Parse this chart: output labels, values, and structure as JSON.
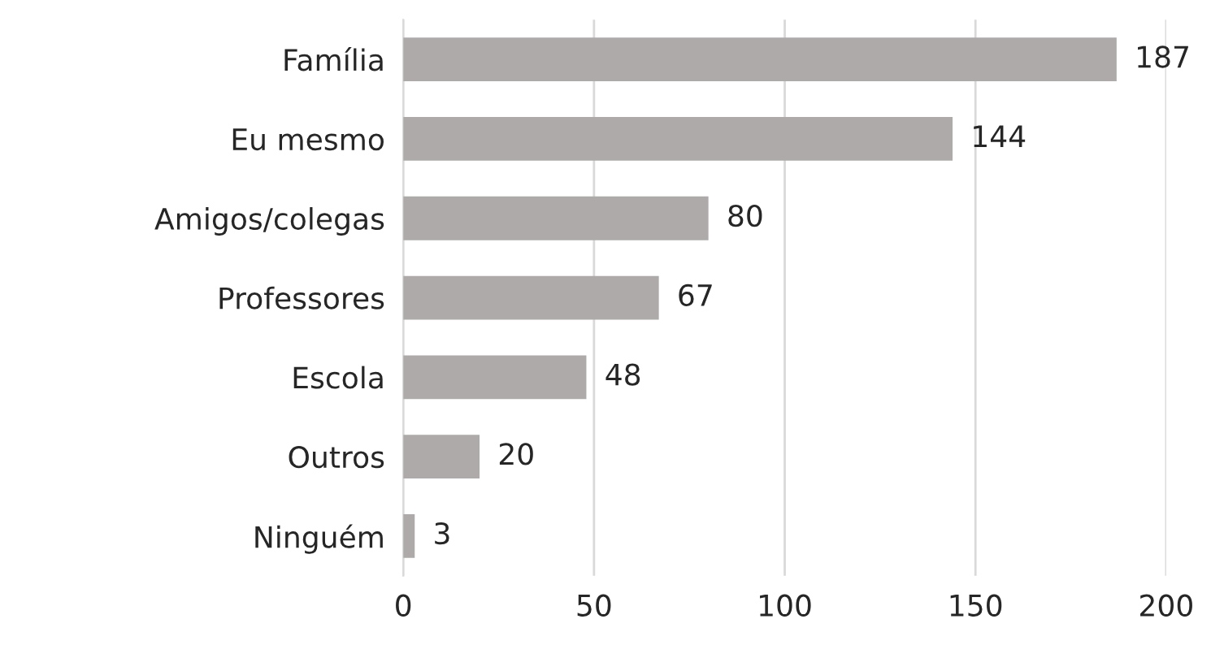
{
  "chart_data": {
    "type": "bar",
    "orientation": "horizontal",
    "categories": [
      "Família",
      "Eu mesmo",
      "Amigos/colegas",
      "Professores",
      "Escola",
      "Outros",
      "Ninguém"
    ],
    "values": [
      187,
      144,
      80,
      67,
      48,
      20,
      3
    ],
    "color": "#aeaaaa",
    "xlim": [
      0,
      200
    ],
    "xticks": [
      0,
      50,
      100,
      150,
      200
    ],
    "grid": "x",
    "data_labels": true,
    "legend": false
  }
}
